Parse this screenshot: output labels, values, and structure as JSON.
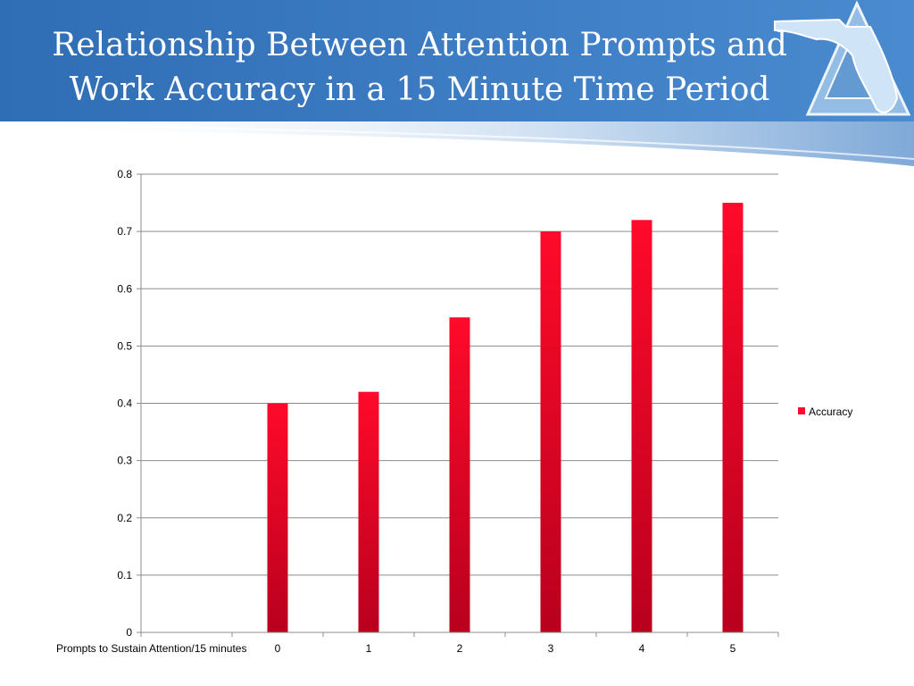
{
  "slide": {
    "title_line1": "Relationship Between Attention Prompts and",
    "title_line2": "Work Accuracy in a 15 Minute Time Period"
  },
  "colors": {
    "header_blue": "#3a78bf",
    "bar_top": "#ff0a2a",
    "bar_bottom": "#b8001e",
    "grid": "#8c8c8c"
  },
  "chart_data": {
    "type": "bar",
    "title": "",
    "xlabel": "Prompts to Sustain Attention/15 minutes",
    "ylabel": "",
    "categories": [
      "",
      "0",
      "1",
      "2",
      "3",
      "4",
      "5"
    ],
    "series": [
      {
        "name": "Accuracy",
        "values": [
          null,
          0.4,
          0.42,
          0.55,
          0.7,
          0.72,
          0.75
        ]
      }
    ],
    "yticks": [
      "0",
      "0.1",
      "0.2",
      "0.3",
      "0.4",
      "0.5",
      "0.6",
      "0.7",
      "0.8"
    ],
    "ylim": [
      0,
      0.8
    ],
    "grid": true,
    "legend": "right"
  }
}
